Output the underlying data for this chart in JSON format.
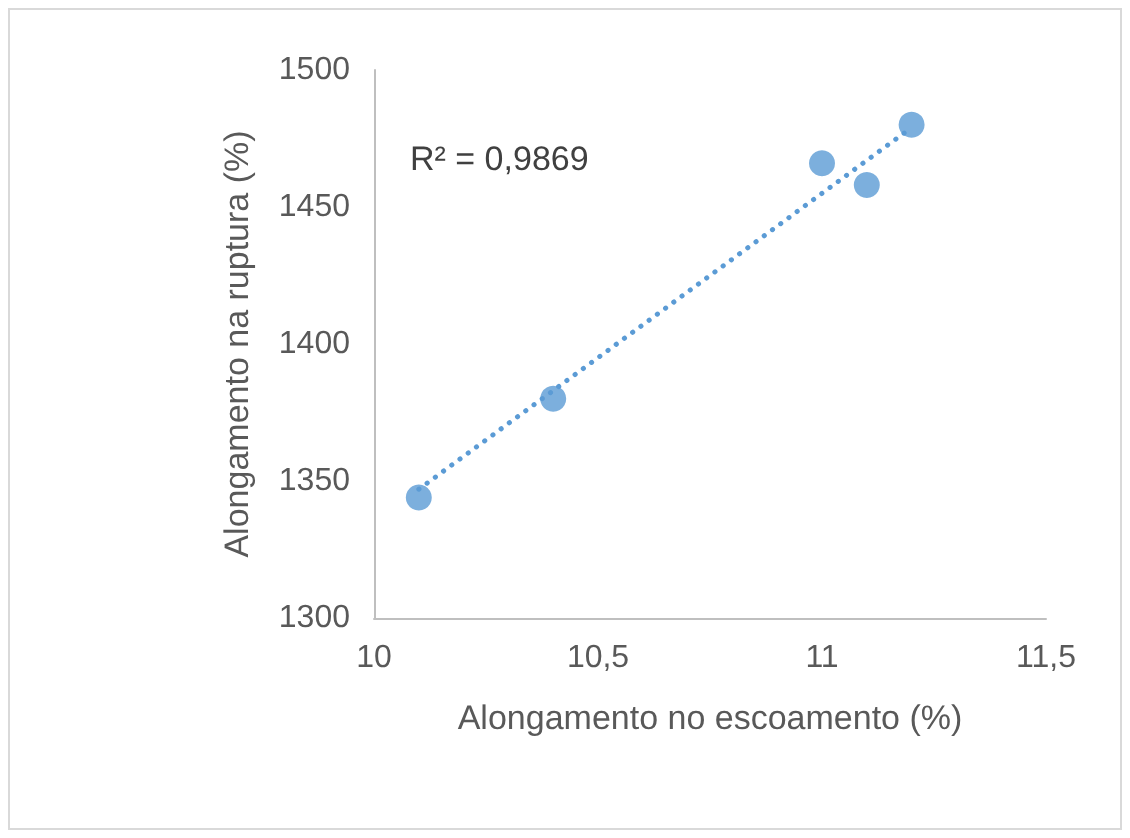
{
  "chart_data": {
    "type": "scatter",
    "xlabel": "Alongamento no escoamento (%)",
    "ylabel": "Alongamento na ruptura (%)",
    "annotations": [
      "R² = 0,9869"
    ],
    "marker": "circle",
    "grid": false,
    "xlim": [
      10,
      11.5
    ],
    "xticks": [
      {
        "value": 10,
        "label": "10"
      },
      {
        "value": 10.5,
        "label": "10,5"
      },
      {
        "value": 11,
        "label": "11"
      },
      {
        "value": 11.5,
        "label": "11,5"
      }
    ],
    "ylim": [
      1300,
      1500
    ],
    "yticks": [
      1300,
      1350,
      1400,
      1450,
      1500
    ],
    "series": [
      {
        "color": "#5b9bd5",
        "x": [
          10.1,
          10.4,
          11.0,
          11.1,
          11.2
        ],
        "values": [
          1344,
          1380,
          1466,
          1458,
          1480
        ]
      },
      {
        "type": "line",
        "color": "#5b9bd5",
        "line_style": "dotted",
        "marker": "none",
        "x": [
          10.1,
          11.2
        ],
        "values": [
          1347,
          1479
        ]
      }
    ]
  }
}
